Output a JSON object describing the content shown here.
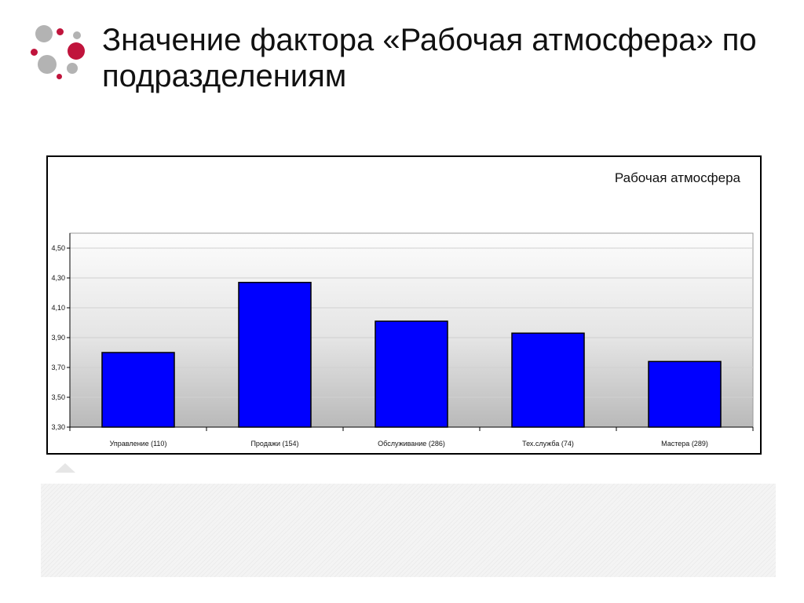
{
  "slide": {
    "title": "Значение фактора «Рабочая атмосфера» по подразделениям"
  },
  "logo": {
    "colors": {
      "primary": "#c0143c",
      "secondary": "#b3b3b3"
    }
  },
  "chart_data": {
    "type": "bar",
    "title": "Рабочая атмосфера",
    "xlabel": "",
    "ylabel": "",
    "categories": [
      "Управление (110)",
      "Продажи (154)",
      "Обслуживание (286)",
      "Тех.служба (74)",
      "Мастера (289)"
    ],
    "values": [
      3.8,
      4.27,
      4.01,
      3.93,
      3.74
    ],
    "ylim": [
      3.3,
      4.6
    ],
    "yticks": [
      3.3,
      3.5,
      3.7,
      3.9,
      4.1,
      4.3,
      4.5
    ],
    "ytick_labels": [
      "3,30",
      "3,50",
      "3,70",
      "3,90",
      "4,10",
      "4,30",
      "4,50"
    ],
    "grid": true,
    "legend": "none",
    "colors": {
      "bar": "#0000ff",
      "bar_border": "#000000"
    }
  }
}
